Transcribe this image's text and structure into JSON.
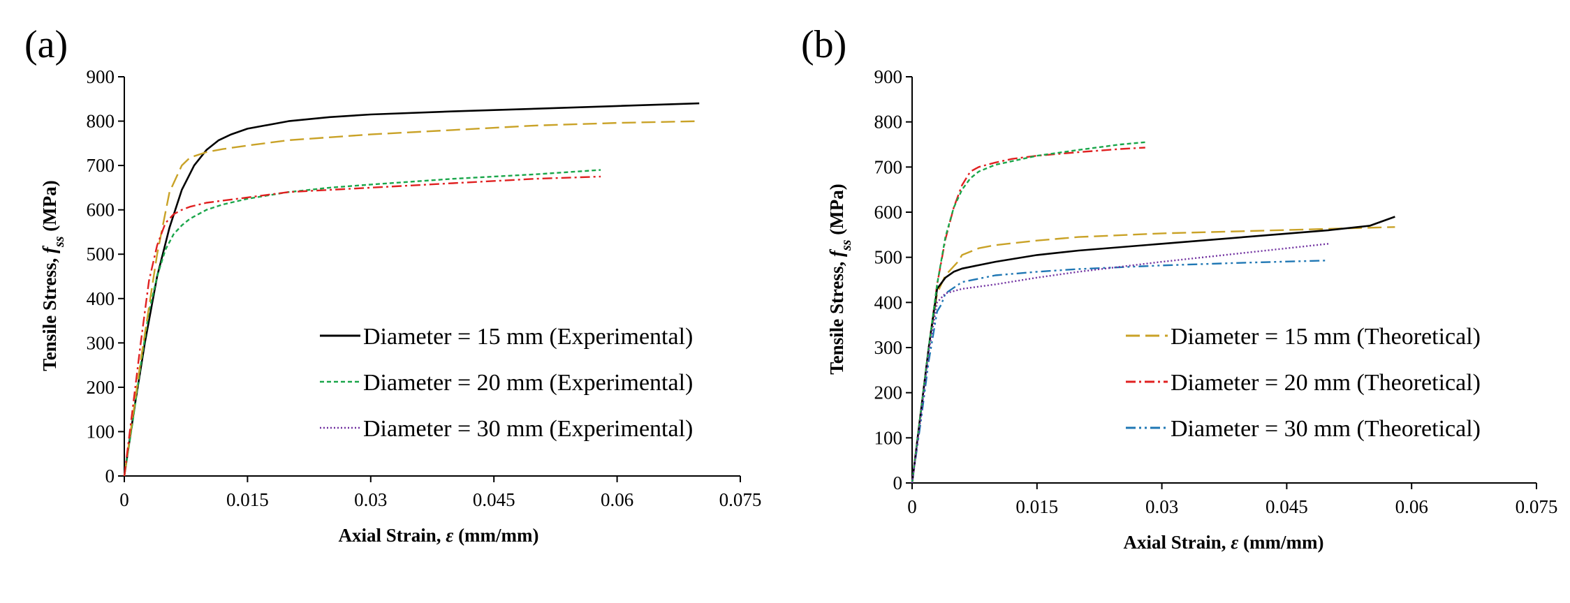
{
  "chart_data": [
    {
      "type": "line",
      "panel_label": "(a)",
      "title": "",
      "xlabel_prefix": "Axial Strain, ",
      "xlabel_symbol": "ε",
      "xlabel_suffix": " (mm/mm)",
      "ylabel_prefix": "Tensile Stress, ",
      "ylabel_symbol": "f",
      "ylabel_sub": "ss",
      "ylabel_suffix": " (MPa)",
      "xlim": [
        0,
        0.075
      ],
      "ylim": [
        0,
        900
      ],
      "xticks": [
        0,
        0.015,
        0.03,
        0.045,
        0.06,
        0.075
      ],
      "xtick_labels": [
        "0",
        "0.015",
        "0.03",
        "0.045",
        "0.06",
        "0.075"
      ],
      "yticks": [
        0,
        100,
        200,
        300,
        400,
        500,
        600,
        700,
        800,
        900
      ],
      "ytick_labels": [
        "0",
        "100",
        "200",
        "300",
        "400",
        "500",
        "600",
        "700",
        "800",
        "900"
      ],
      "legend_position": "bottom-right",
      "grid": false,
      "series": [
        {
          "name": "Diameter = 15 mm (Experimental)",
          "color": "#000000",
          "dash": "solid",
          "in_legend": true,
          "x": [
            0,
            0.0012,
            0.0025,
            0.004,
            0.0055,
            0.007,
            0.0085,
            0.01,
            0.0115,
            0.013,
            0.015,
            0.02,
            0.025,
            0.03,
            0.04,
            0.05,
            0.06,
            0.07
          ],
          "y": [
            0,
            150,
            300,
            450,
            560,
            645,
            700,
            735,
            757,
            770,
            783,
            800,
            809,
            815,
            822,
            828,
            834,
            840
          ]
        },
        {
          "name": "Diameter = 20 mm (Experimental)",
          "color": "#1aa64a",
          "dash": "dash",
          "in_legend": true,
          "x": [
            0,
            0.001,
            0.002,
            0.003,
            0.004,
            0.005,
            0.006,
            0.007,
            0.008,
            0.01,
            0.012,
            0.015,
            0.02,
            0.025,
            0.03,
            0.04,
            0.05,
            0.058
          ],
          "y": [
            0,
            120,
            250,
            370,
            450,
            510,
            545,
            565,
            580,
            600,
            612,
            625,
            640,
            650,
            657,
            670,
            680,
            690
          ]
        },
        {
          "name": "Diameter = 30 mm (Experimental)",
          "color": "#7030a0",
          "dash": "dot",
          "in_legend": true,
          "x": [],
          "y": []
        },
        {
          "name": "Gold dashed (unlabeled)",
          "color": "#c9a227",
          "dash": "longdash",
          "in_legend": false,
          "x": [
            0,
            0.002,
            0.004,
            0.0055,
            0.007,
            0.008,
            0.01,
            0.012,
            0.015,
            0.02,
            0.03,
            0.04,
            0.05,
            0.06,
            0.07
          ],
          "y": [
            0,
            260,
            500,
            640,
            700,
            718,
            730,
            737,
            745,
            757,
            770,
            780,
            790,
            796,
            800
          ]
        },
        {
          "name": "Red dash-dot (unlabeled)",
          "color": "#e02020",
          "dash": "dashdot",
          "in_legend": false,
          "x": [
            0,
            0.001,
            0.002,
            0.003,
            0.004,
            0.005,
            0.006,
            0.007,
            0.008,
            0.01,
            0.015,
            0.02,
            0.03,
            0.04,
            0.05,
            0.058
          ],
          "y": [
            0,
            150,
            300,
            440,
            520,
            570,
            590,
            600,
            607,
            616,
            628,
            640,
            650,
            660,
            670,
            675
          ]
        }
      ]
    },
    {
      "type": "line",
      "panel_label": "(b)",
      "title": "",
      "xlabel_prefix": "Axial Strain, ",
      "xlabel_symbol": "ε",
      "xlabel_suffix": " (mm/mm)",
      "ylabel_prefix": "Tensile Stress, ",
      "ylabel_symbol": "f",
      "ylabel_sub": "ss",
      "ylabel_suffix": " (MPa)",
      "xlim": [
        0,
        0.075
      ],
      "ylim": [
        0,
        900
      ],
      "xticks": [
        0,
        0.015,
        0.03,
        0.045,
        0.06,
        0.075
      ],
      "xtick_labels": [
        "0",
        "0.015",
        "0.03",
        "0.045",
        "0.06",
        "0.075"
      ],
      "yticks": [
        0,
        100,
        200,
        300,
        400,
        500,
        600,
        700,
        800,
        900
      ],
      "ytick_labels": [
        "0",
        "100",
        "200",
        "300",
        "400",
        "500",
        "600",
        "700",
        "800",
        "900"
      ],
      "legend_position": "bottom-right",
      "grid": false,
      "series": [
        {
          "name": "Diameter = 15 mm (Theoretical)",
          "color": "#c9a227",
          "dash": "longdash",
          "in_legend": true,
          "x": [
            0,
            0.001,
            0.002,
            0.003,
            0.004,
            0.005,
            0.0055,
            0.006,
            0.008,
            0.01,
            0.015,
            0.02,
            0.03,
            0.04,
            0.05,
            0.058
          ],
          "y": [
            0,
            150,
            300,
            420,
            460,
            480,
            490,
            505,
            520,
            527,
            537,
            545,
            553,
            558,
            563,
            567
          ]
        },
        {
          "name": "Diameter = 20 mm (Theoretical)",
          "color": "#e02020",
          "dash": "dashdot",
          "in_legend": true,
          "x": [
            0,
            0.001,
            0.002,
            0.003,
            0.004,
            0.005,
            0.006,
            0.007,
            0.008,
            0.01,
            0.012,
            0.015,
            0.02,
            0.025,
            0.028
          ],
          "y": [
            0,
            150,
            300,
            440,
            540,
            610,
            660,
            690,
            700,
            710,
            718,
            725,
            733,
            740,
            743
          ]
        },
        {
          "name": "Diameter = 30 mm (Theoretical)",
          "color": "#1f77b4",
          "dash": "dashdotdot",
          "in_legend": true,
          "x": [
            0,
            0.001,
            0.002,
            0.003,
            0.0035,
            0.004,
            0.006,
            0.01,
            0.015,
            0.02,
            0.03,
            0.04,
            0.05
          ],
          "y": [
            0,
            130,
            270,
            380,
            395,
            420,
            445,
            460,
            468,
            474,
            482,
            488,
            493
          ]
        },
        {
          "name": "Black solid (unlabeled)",
          "color": "#000000",
          "dash": "solid",
          "in_legend": false,
          "x": [
            0,
            0.001,
            0.002,
            0.003,
            0.004,
            0.005,
            0.006,
            0.01,
            0.015,
            0.02,
            0.03,
            0.04,
            0.05,
            0.055,
            0.058
          ],
          "y": [
            0,
            150,
            300,
            430,
            455,
            468,
            475,
            490,
            505,
            515,
            530,
            545,
            560,
            570,
            590
          ]
        },
        {
          "name": "Green dashed (unlabeled)",
          "color": "#1aa64a",
          "dash": "dash",
          "in_legend": false,
          "x": [
            0,
            0.001,
            0.002,
            0.003,
            0.004,
            0.005,
            0.006,
            0.007,
            0.008,
            0.01,
            0.015,
            0.02,
            0.025,
            0.028
          ],
          "y": [
            0,
            150,
            300,
            440,
            545,
            610,
            650,
            675,
            690,
            705,
            725,
            738,
            750,
            755
          ]
        },
        {
          "name": "Purple dotted (unlabeled)",
          "color": "#7030a0",
          "dash": "dot",
          "in_legend": false,
          "x": [
            0,
            0.001,
            0.002,
            0.003,
            0.004,
            0.006,
            0.01,
            0.015,
            0.02,
            0.03,
            0.04,
            0.05
          ],
          "y": [
            0,
            140,
            290,
            400,
            420,
            430,
            440,
            455,
            468,
            490,
            510,
            530
          ]
        }
      ]
    }
  ]
}
